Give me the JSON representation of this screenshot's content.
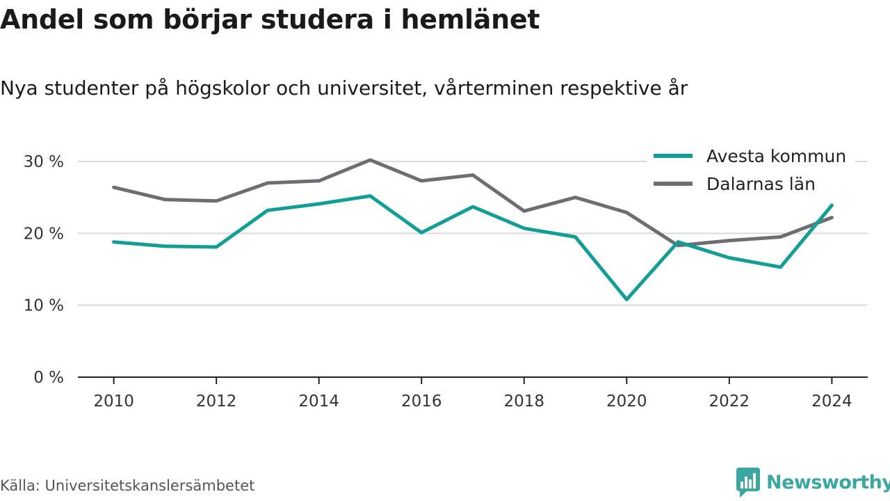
{
  "title": "Andel som börjar studera i hemlänet",
  "subtitle": "Nya studenter på högskolor och universitet, vårterminen respektive år",
  "source": "Källa: Universitetskanslersämbetet",
  "brand": {
    "name": "Newsworthy",
    "icon": "newsworthy-logo-icon",
    "color": "#3aa7a0"
  },
  "chart_data": {
    "type": "line",
    "x": [
      2010,
      2011,
      2012,
      2013,
      2014,
      2015,
      2016,
      2017,
      2018,
      2019,
      2020,
      2021,
      2022,
      2023,
      2024
    ],
    "xticks": [
      2010,
      2012,
      2014,
      2016,
      2018,
      2020,
      2022,
      2024
    ],
    "xtick_labels": [
      "2010",
      "2012",
      "2014",
      "2016",
      "2018",
      "2020",
      "2022",
      "2024"
    ],
    "yticks": [
      0,
      10,
      20,
      30
    ],
    "ytick_labels": [
      "0 %",
      "10 %",
      "20 %",
      "30 %"
    ],
    "ylim": [
      0,
      30
    ],
    "xlim": [
      2009.3,
      2024.7
    ],
    "grid": true,
    "legend_position": "top-right",
    "series": [
      {
        "name": "Avesta kommun",
        "color": "#109e96",
        "values": [
          18.8,
          18.2,
          18.1,
          23.2,
          24.1,
          25.2,
          20.1,
          23.7,
          20.7,
          19.5,
          10.8,
          18.8,
          16.6,
          15.3,
          23.9
        ]
      },
      {
        "name": "Dalarnas län",
        "color": "#6e6e72",
        "values": [
          26.4,
          24.7,
          24.5,
          27.0,
          27.3,
          30.2,
          27.3,
          28.1,
          23.1,
          25.0,
          22.9,
          18.3,
          19.0,
          19.5,
          22.2
        ]
      }
    ]
  }
}
